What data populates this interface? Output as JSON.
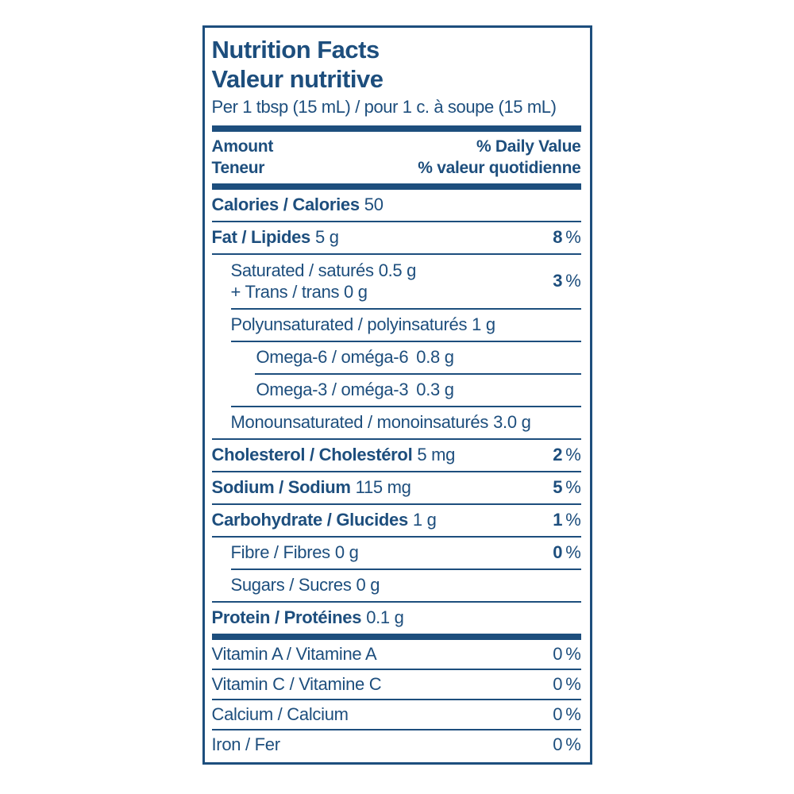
{
  "label": {
    "title_en": "Nutrition Facts",
    "title_fr": "Valeur nutritive",
    "serving": "Per 1 tbsp (15 mL) / pour 1 c. à soupe (15 mL)",
    "amount_header": {
      "amount_en": "Amount",
      "amount_fr": "Teneur",
      "dv_en": "% Daily Value",
      "dv_fr": "% valeur quotidienne"
    },
    "pct_sign": "%",
    "colors": {
      "text_and_rules": "#1d4e7d",
      "background": "#ffffff"
    },
    "rows": [
      {
        "name": "Calories / Calories",
        "amount": "50"
      },
      {
        "name": "Fat / Lipides",
        "amount": "5 g",
        "dv": "8"
      },
      {
        "name": "Saturated / saturés",
        "amount": "0.5 g",
        "line2": "+ Trans / trans 0 g",
        "dv": "3"
      },
      {
        "name": "Polyunsaturated / polyinsaturés",
        "amount": "1 g"
      },
      {
        "name": "Omega-6 / oméga-6",
        "amount": "0.8 g"
      },
      {
        "name": "Omega-3 / oméga-3",
        "amount": "0.3 g"
      },
      {
        "name": "Monounsaturated / monoinsaturés",
        "amount": "3.0 g"
      },
      {
        "name": "Cholesterol / Cholestérol",
        "amount": "5 mg",
        "dv": "2"
      },
      {
        "name": "Sodium / Sodium",
        "amount": "115 mg",
        "dv": "5"
      },
      {
        "name": "Carbohydrate / Glucides",
        "amount": "1 g",
        "dv": "1"
      },
      {
        "name": "Fibre / Fibres",
        "amount": "0 g",
        "dv": "0"
      },
      {
        "name": "Sugars / Sucres",
        "amount": "0 g"
      },
      {
        "name": "Protein / Protéines",
        "amount": "0.1 g"
      },
      {
        "name": "Vitamin A / Vitamine A",
        "dv": "0"
      },
      {
        "name": "Vitamin C / Vitamine C",
        "dv": "0"
      },
      {
        "name": "Calcium / Calcium",
        "dv": "0"
      },
      {
        "name": "Iron / Fer",
        "dv": "0"
      }
    ]
  }
}
